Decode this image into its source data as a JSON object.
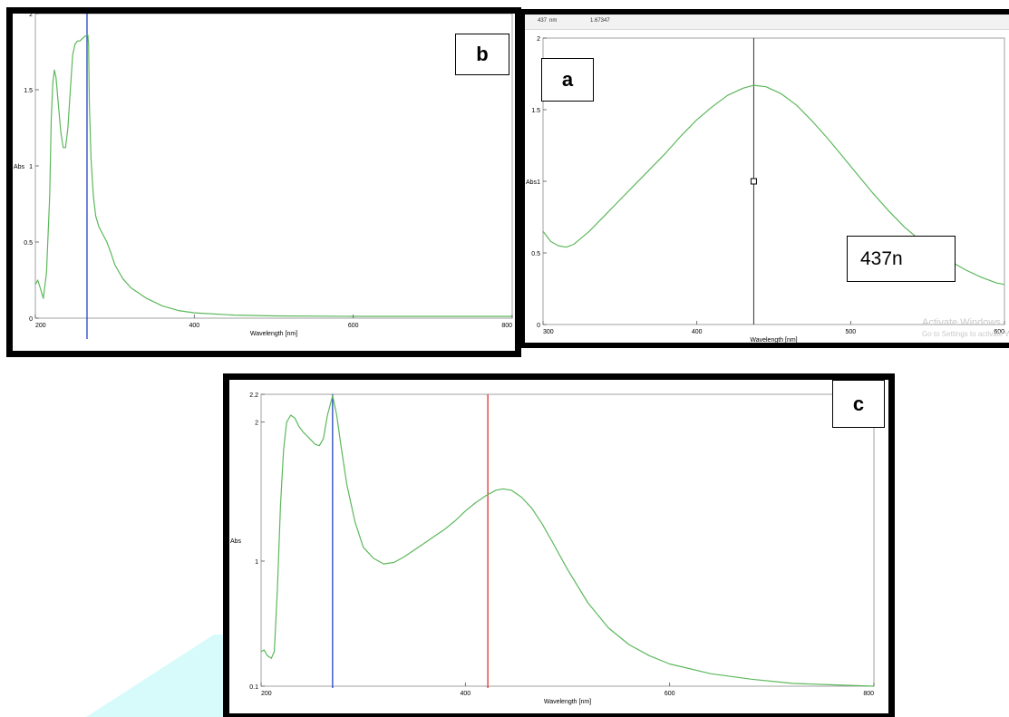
{
  "colors": {
    "curve": "#5cb85c",
    "axis": "#000000",
    "frame": "#000000",
    "blue_marker": "#2443c4",
    "red_marker": "#e03030",
    "cursor": "#333333",
    "stripe": "#d7fbfb",
    "readout_bg": "#f2f2f2"
  },
  "panel_b": {
    "badge": "b"
  },
  "panel_a": {
    "badge": "a",
    "readout": {
      "wavelength": "437",
      "unit": "nm",
      "value": "1.67347"
    },
    "callout": "437n",
    "watermark": {
      "line1": "Activate Windows",
      "line2": "Go to Settings to activate W"
    }
  },
  "panel_c": {
    "badge": "c"
  },
  "chart_data": [
    {
      "id": "b",
      "type": "line",
      "xlabel": "Wavelength [nm]",
      "ylabel": "Abs",
      "xlim": [
        200,
        800
      ],
      "ylim": [
        0,
        2
      ],
      "xticks": [
        200,
        400,
        600,
        800
      ],
      "yticks": [
        0,
        0.5,
        1,
        1.5,
        2
      ],
      "tick_labels_x": [
        "200",
        "400",
        "600",
        "800"
      ],
      "tick_labels_y": [
        "0",
        "0.5",
        "1",
        "1.5",
        "2"
      ],
      "grid": false,
      "markers": [
        {
          "x": 265,
          "color": "blue"
        }
      ],
      "series": [
        {
          "points": [
            [
              200,
              0.22
            ],
            [
              203,
              0.25
            ],
            [
              206,
              0.2
            ],
            [
              210,
              0.13
            ],
            [
              214,
              0.3
            ],
            [
              218,
              0.8
            ],
            [
              220,
              1.3
            ],
            [
              222,
              1.55
            ],
            [
              224,
              1.63
            ],
            [
              226,
              1.58
            ],
            [
              229,
              1.4
            ],
            [
              232,
              1.22
            ],
            [
              235,
              1.12
            ],
            [
              238,
              1.12
            ],
            [
              241,
              1.25
            ],
            [
              244,
              1.5
            ],
            [
              247,
              1.73
            ],
            [
              250,
              1.8
            ],
            [
              253,
              1.82
            ],
            [
              256,
              1.82
            ],
            [
              258,
              1.83
            ],
            [
              262,
              1.85
            ],
            [
              266,
              1.86
            ],
            [
              267,
              1.8
            ],
            [
              268,
              1.4
            ],
            [
              270,
              1.05
            ],
            [
              273,
              0.8
            ],
            [
              276,
              0.67
            ],
            [
              280,
              0.6
            ],
            [
              285,
              0.55
            ],
            [
              290,
              0.5
            ],
            [
              295,
              0.43
            ],
            [
              300,
              0.35
            ],
            [
              310,
              0.26
            ],
            [
              320,
              0.2
            ],
            [
              340,
              0.13
            ],
            [
              360,
              0.08
            ],
            [
              380,
              0.05
            ],
            [
              400,
              0.035
            ],
            [
              450,
              0.02
            ],
            [
              500,
              0.015
            ],
            [
              600,
              0.012
            ],
            [
              700,
              0.012
            ],
            [
              800,
              0.012
            ]
          ]
        }
      ]
    },
    {
      "id": "a",
      "type": "line",
      "xlabel": "Wavelength [nm]",
      "ylabel": "Abs",
      "xlim": [
        300,
        600
      ],
      "ylim": [
        0,
        2
      ],
      "xticks": [
        300,
        400,
        500,
        600
      ],
      "yticks": [
        0,
        0.5,
        1,
        1.5,
        2
      ],
      "tick_labels_x": [
        "300",
        "400",
        "500",
        "600"
      ],
      "tick_labels_y": [
        "0",
        "0.5",
        "1",
        "1.5",
        "2"
      ],
      "grid": false,
      "cursor": {
        "x": 437,
        "y": 1.0
      },
      "series": [
        {
          "points": [
            [
              300,
              0.65
            ],
            [
              305,
              0.58
            ],
            [
              310,
              0.55
            ],
            [
              315,
              0.54
            ],
            [
              320,
              0.56
            ],
            [
              330,
              0.65
            ],
            [
              340,
              0.76
            ],
            [
              350,
              0.87
            ],
            [
              360,
              0.98
            ],
            [
              370,
              1.09
            ],
            [
              380,
              1.2
            ],
            [
              390,
              1.32
            ],
            [
              400,
              1.43
            ],
            [
              410,
              1.52
            ],
            [
              420,
              1.6
            ],
            [
              430,
              1.65
            ],
            [
              437,
              1.67
            ],
            [
              445,
              1.66
            ],
            [
              455,
              1.61
            ],
            [
              465,
              1.53
            ],
            [
              475,
              1.42
            ],
            [
              485,
              1.3
            ],
            [
              495,
              1.17
            ],
            [
              505,
              1.04
            ],
            [
              515,
              0.91
            ],
            [
              525,
              0.79
            ],
            [
              535,
              0.68
            ],
            [
              545,
              0.59
            ],
            [
              555,
              0.51
            ],
            [
              565,
              0.44
            ],
            [
              575,
              0.38
            ],
            [
              585,
              0.33
            ],
            [
              595,
              0.29
            ],
            [
              600,
              0.28
            ]
          ]
        }
      ]
    },
    {
      "id": "c",
      "type": "line",
      "xlabel": "Wavelength [nm]",
      "ylabel": "Abs",
      "xlim": [
        200,
        800
      ],
      "ylim": [
        0.1,
        2.2
      ],
      "xticks": [
        200,
        400,
        600,
        800
      ],
      "yticks": [
        0.1,
        1,
        2,
        2.2
      ],
      "tick_labels_x": [
        "200",
        "400",
        "600",
        "800"
      ],
      "tick_labels_y": [
        "0.1",
        "1",
        "2",
        "2.2"
      ],
      "grid": false,
      "markers": [
        {
          "x": 270,
          "color": "blue"
        },
        {
          "x": 422,
          "color": "red"
        }
      ],
      "series": [
        {
          "points": [
            [
              200,
              0.35
            ],
            [
              203,
              0.36
            ],
            [
              206,
              0.32
            ],
            [
              210,
              0.3
            ],
            [
              213,
              0.35
            ],
            [
              216,
              0.8
            ],
            [
              219,
              1.4
            ],
            [
              222,
              1.8
            ],
            [
              225,
              2.0
            ],
            [
              229,
              2.05
            ],
            [
              233,
              2.03
            ],
            [
              237,
              1.97
            ],
            [
              241,
              1.93
            ],
            [
              245,
              1.9
            ],
            [
              249,
              1.87
            ],
            [
              253,
              1.84
            ],
            [
              257,
              1.83
            ],
            [
              261,
              1.88
            ],
            [
              265,
              2.05
            ],
            [
              270,
              2.19
            ],
            [
              274,
              2.05
            ],
            [
              278,
              1.84
            ],
            [
              284,
              1.55
            ],
            [
              292,
              1.28
            ],
            [
              300,
              1.1
            ],
            [
              310,
              1.02
            ],
            [
              320,
              0.98
            ],
            [
              330,
              0.99
            ],
            [
              340,
              1.03
            ],
            [
              350,
              1.08
            ],
            [
              360,
              1.13
            ],
            [
              370,
              1.18
            ],
            [
              380,
              1.23
            ],
            [
              390,
              1.29
            ],
            [
              400,
              1.36
            ],
            [
              410,
              1.42
            ],
            [
              420,
              1.47
            ],
            [
              430,
              1.51
            ],
            [
              437,
              1.52
            ],
            [
              445,
              1.51
            ],
            [
              455,
              1.46
            ],
            [
              465,
              1.38
            ],
            [
              475,
              1.27
            ],
            [
              485,
              1.14
            ],
            [
              500,
              0.94
            ],
            [
              520,
              0.7
            ],
            [
              540,
              0.52
            ],
            [
              560,
              0.4
            ],
            [
              580,
              0.32
            ],
            [
              600,
              0.26
            ],
            [
              640,
              0.19
            ],
            [
              680,
              0.15
            ],
            [
              720,
              0.12
            ],
            [
              760,
              0.11
            ],
            [
              800,
              0.1
            ]
          ]
        }
      ]
    }
  ]
}
